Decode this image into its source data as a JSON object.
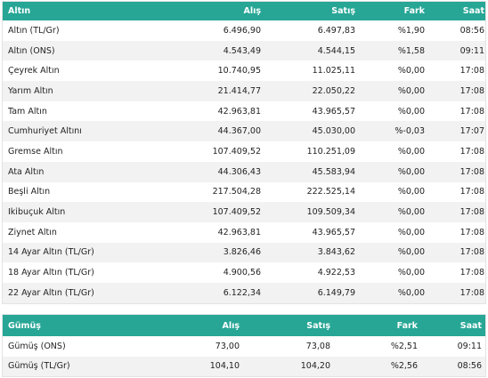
{
  "gold": {
    "headers": [
      "Altın",
      "Alış",
      "Satış",
      "Fark",
      "Saat"
    ],
    "rows": [
      [
        "Altın (TL/Gr)",
        "6.496,90",
        "6.497,83",
        "%1,90",
        "08:56"
      ],
      [
        "Altın (ONS)",
        "4.543,49",
        "4.544,15",
        "%1,58",
        "09:11"
      ],
      [
        "Çeyrek Altın",
        "10.740,95",
        "11.025,11",
        "%0,00",
        "17:08"
      ],
      [
        "Yarım Altın",
        "21.414,77",
        "22.050,22",
        "%0,00",
        "17:08"
      ],
      [
        "Tam Altın",
        "42.963,81",
        "43.965,57",
        "%0,00",
        "17:08"
      ],
      [
        "Cumhuriyet Altını",
        "44.367,00",
        "45.030,00",
        "%-0,03",
        "17:07"
      ],
      [
        "Gremse Altın",
        "107.409,52",
        "110.251,09",
        "%0,00",
        "17:08"
      ],
      [
        "Ata Altın",
        "44.306,43",
        "45.583,94",
        "%0,00",
        "17:08"
      ],
      [
        "Beşli Altın",
        "217.504,28",
        "222.525,14",
        "%0,00",
        "17:08"
      ],
      [
        "İkibuçuk Altın",
        "107.409,52",
        "109.509,34",
        "%0,00",
        "17:08"
      ],
      [
        "Ziynet Altın",
        "42.963,81",
        "43.965,57",
        "%0,00",
        "17:08"
      ],
      [
        "14 Ayar Altın (TL/Gr)",
        "3.826,46",
        "3.843,62",
        "%0,00",
        "17:08"
      ],
      [
        "18 Ayar Altın (TL/Gr)",
        "4.900,56",
        "4.922,53",
        "%0,00",
        "17:08"
      ],
      [
        "22 Ayar Altın (TL/Gr)",
        "6.122,34",
        "6.149,79",
        "%0,00",
        "17:08"
      ]
    ]
  },
  "silver": {
    "headers": [
      "Gümüş",
      "Alış",
      "Satış",
      "Fark",
      "Saat"
    ],
    "rows": [
      [
        "Gümüş (ONS)",
        "73,00",
        "73,08",
        "%2,51",
        "09:11"
      ],
      [
        "Gümüş (TL/Gr)",
        "104,10",
        "104,20",
        "%2,56",
        "08:56"
      ]
    ]
  },
  "colors": {
    "header_bg": "#27a696",
    "header_text": "#ffffff",
    "alt_row_bg": "#f2f2f2"
  }
}
